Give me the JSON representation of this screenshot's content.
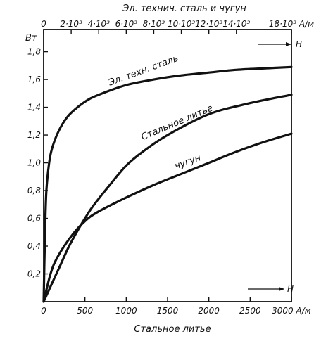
{
  "chart_data": {
    "type": "line",
    "top_axis": {
      "title": "Эл. технич. сталь и чугун",
      "tick_labels": [
        "0",
        "2·10³",
        "4·10³",
        "6·10³",
        "8·10³",
        "10·10³",
        "12·10³",
        "14·10³",
        "18·10³ А/м"
      ],
      "tick_values": [
        0,
        2000,
        4000,
        6000,
        8000,
        10000,
        12000,
        14000,
        18000
      ],
      "range": [
        0,
        18000
      ],
      "direction_label": "H"
    },
    "bottom_axis": {
      "title": "Стальное литье",
      "tick_labels": [
        "0",
        "500",
        "1000",
        "1500",
        "2000",
        "2500",
        "3000 А/м"
      ],
      "tick_values": [
        0,
        500,
        1000,
        1500,
        2000,
        2500,
        3000
      ],
      "range": [
        0,
        3000
      ],
      "direction_label": "H"
    },
    "y_axis": {
      "title": "Bт",
      "tick_labels": [
        "0,2",
        "0,4",
        "0,6",
        "0,8",
        "1,0",
        "1,2",
        "1,4",
        "1,6",
        "1,8"
      ],
      "tick_values": [
        0.2,
        0.4,
        0.6,
        0.8,
        1.0,
        1.2,
        1.4,
        1.6,
        1.8
      ],
      "range": [
        0,
        1.96
      ]
    },
    "grid": false,
    "series": [
      {
        "name": "Эл. техн. сталь",
        "x_axis": "top",
        "x": [
          0,
          100,
          200,
          400,
          600,
          1000,
          1500,
          2000,
          3000,
          4000,
          6000,
          8000,
          10000,
          12000,
          14000,
          16000,
          18000
        ],
        "y": [
          0,
          0.5,
          0.8,
          1.0,
          1.1,
          1.21,
          1.3,
          1.36,
          1.44,
          1.49,
          1.56,
          1.6,
          1.63,
          1.65,
          1.67,
          1.68,
          1.69
        ]
      },
      {
        "name": "Стальное литье",
        "x_axis": "bottom",
        "x": [
          0,
          100,
          200,
          300,
          400,
          500,
          600,
          800,
          1000,
          1200,
          1500,
          2000,
          2500,
          3000
        ],
        "y": [
          0,
          0.13,
          0.26,
          0.39,
          0.5,
          0.6,
          0.69,
          0.84,
          0.98,
          1.08,
          1.2,
          1.35,
          1.43,
          1.49
        ]
      },
      {
        "name": "чугун",
        "x_axis": "top",
        "x": [
          0,
          500,
          1000,
          2000,
          3000,
          4000,
          6000,
          8000,
          10000,
          12000,
          14000,
          16000,
          18000
        ],
        "y": [
          0,
          0.2,
          0.32,
          0.47,
          0.58,
          0.65,
          0.75,
          0.84,
          0.92,
          1.0,
          1.08,
          1.15,
          1.21
        ]
      }
    ]
  }
}
